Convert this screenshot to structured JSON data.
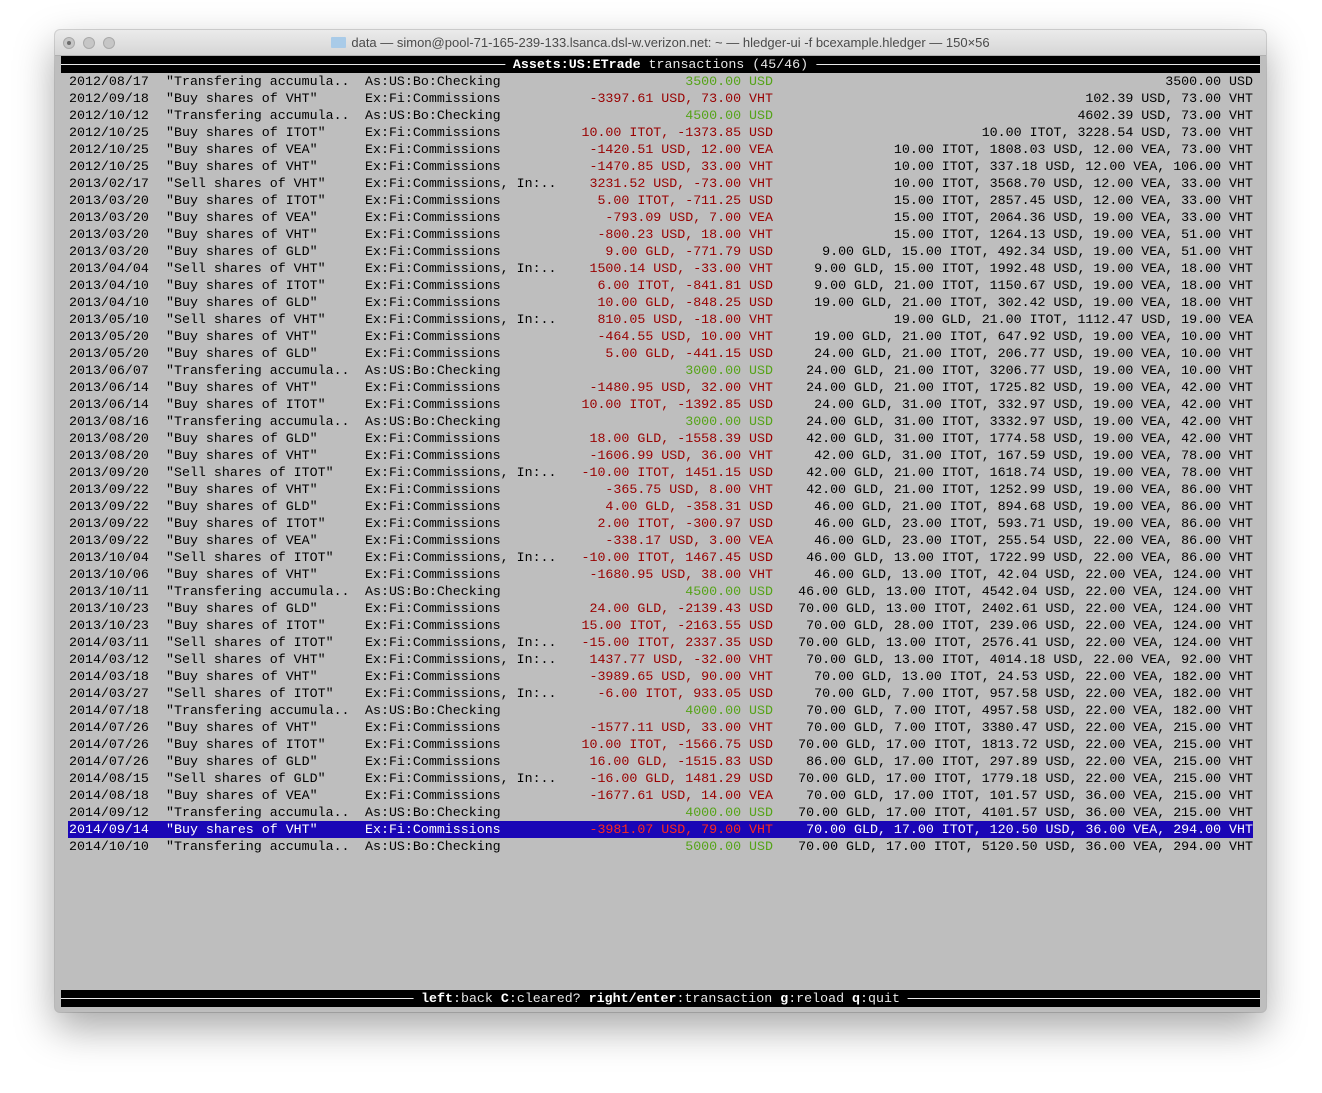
{
  "window": {
    "title": "data — simon@pool-71-165-239-133.lsanca.dsl-w.verizon.net: ~ — hledger-ui -f bcexample.hledger — 150×56"
  },
  "header": {
    "account": "Assets:US:ETrade",
    "suffix": " transactions (45/46)"
  },
  "footer": {
    "keys": [
      {
        "key": "left",
        "action": "back"
      },
      {
        "key": "C",
        "action": "cleared?"
      },
      {
        "key": "right/enter",
        "action": "transaction"
      },
      {
        "key": "g",
        "action": "reload"
      },
      {
        "key": "q",
        "action": "quit"
      }
    ]
  },
  "colors": {
    "background": "#bebebe",
    "increase": "#55a318",
    "decrease": "#980000",
    "selection": "#1a06b6"
  },
  "selected_index": 44,
  "rows": [
    {
      "date": "2012/08/17",
      "desc": "\"Transfering accumula..",
      "acct": "As:US:Bo:Checking",
      "change": "3500.00 USD",
      "pos": true,
      "balance": "3500.00 USD"
    },
    {
      "date": "2012/09/18",
      "desc": "\"Buy shares of VHT\"",
      "acct": "Ex:Fi:Commissions",
      "change": "-3397.61 USD, 73.00 VHT",
      "pos": false,
      "balance": "102.39 USD, 73.00 VHT"
    },
    {
      "date": "2012/10/12",
      "desc": "\"Transfering accumula..",
      "acct": "As:US:Bo:Checking",
      "change": "4500.00 USD",
      "pos": true,
      "balance": "4602.39 USD, 73.00 VHT"
    },
    {
      "date": "2012/10/25",
      "desc": "\"Buy shares of ITOT\"",
      "acct": "Ex:Fi:Commissions",
      "change": "10.00 ITOT, -1373.85 USD",
      "pos": false,
      "balance": "10.00 ITOT, 3228.54 USD, 73.00 VHT"
    },
    {
      "date": "2012/10/25",
      "desc": "\"Buy shares of VEA\"",
      "acct": "Ex:Fi:Commissions",
      "change": "-1420.51 USD, 12.00 VEA",
      "pos": false,
      "balance": "10.00 ITOT, 1808.03 USD, 12.00 VEA, 73.00 VHT"
    },
    {
      "date": "2012/10/25",
      "desc": "\"Buy shares of VHT\"",
      "acct": "Ex:Fi:Commissions",
      "change": "-1470.85 USD, 33.00 VHT",
      "pos": false,
      "balance": "10.00 ITOT, 337.18 USD, 12.00 VEA, 106.00 VHT"
    },
    {
      "date": "2013/02/17",
      "desc": "\"Sell shares of VHT\"",
      "acct": "Ex:Fi:Commissions, In:..",
      "change": "3231.52 USD, -73.00 VHT",
      "pos": false,
      "balance": "10.00 ITOT, 3568.70 USD, 12.00 VEA, 33.00 VHT"
    },
    {
      "date": "2013/03/20",
      "desc": "\"Buy shares of ITOT\"",
      "acct": "Ex:Fi:Commissions",
      "change": "5.00 ITOT, -711.25 USD",
      "pos": false,
      "balance": "15.00 ITOT, 2857.45 USD, 12.00 VEA, 33.00 VHT"
    },
    {
      "date": "2013/03/20",
      "desc": "\"Buy shares of VEA\"",
      "acct": "Ex:Fi:Commissions",
      "change": "-793.09 USD, 7.00 VEA",
      "pos": false,
      "balance": "15.00 ITOT, 2064.36 USD, 19.00 VEA, 33.00 VHT"
    },
    {
      "date": "2013/03/20",
      "desc": "\"Buy shares of VHT\"",
      "acct": "Ex:Fi:Commissions",
      "change": "-800.23 USD, 18.00 VHT",
      "pos": false,
      "balance": "15.00 ITOT, 1264.13 USD, 19.00 VEA, 51.00 VHT"
    },
    {
      "date": "2013/03/20",
      "desc": "\"Buy shares of GLD\"",
      "acct": "Ex:Fi:Commissions",
      "change": "9.00 GLD, -771.79 USD",
      "pos": false,
      "balance": "9.00 GLD, 15.00 ITOT, 492.34 USD, 19.00 VEA, 51.00 VHT"
    },
    {
      "date": "2013/04/04",
      "desc": "\"Sell shares of VHT\"",
      "acct": "Ex:Fi:Commissions, In:..",
      "change": "1500.14 USD, -33.00 VHT",
      "pos": false,
      "balance": "9.00 GLD, 15.00 ITOT, 1992.48 USD, 19.00 VEA, 18.00 VHT"
    },
    {
      "date": "2013/04/10",
      "desc": "\"Buy shares of ITOT\"",
      "acct": "Ex:Fi:Commissions",
      "change": "6.00 ITOT, -841.81 USD",
      "pos": false,
      "balance": "9.00 GLD, 21.00 ITOT, 1150.67 USD, 19.00 VEA, 18.00 VHT"
    },
    {
      "date": "2013/04/10",
      "desc": "\"Buy shares of GLD\"",
      "acct": "Ex:Fi:Commissions",
      "change": "10.00 GLD, -848.25 USD",
      "pos": false,
      "balance": "19.00 GLD, 21.00 ITOT, 302.42 USD, 19.00 VEA, 18.00 VHT"
    },
    {
      "date": "2013/05/10",
      "desc": "\"Sell shares of VHT\"",
      "acct": "Ex:Fi:Commissions, In:..",
      "change": "810.05 USD, -18.00 VHT",
      "pos": false,
      "balance": "19.00 GLD, 21.00 ITOT, 1112.47 USD, 19.00 VEA"
    },
    {
      "date": "2013/05/20",
      "desc": "\"Buy shares of VHT\"",
      "acct": "Ex:Fi:Commissions",
      "change": "-464.55 USD, 10.00 VHT",
      "pos": false,
      "balance": "19.00 GLD, 21.00 ITOT, 647.92 USD, 19.00 VEA, 10.00 VHT"
    },
    {
      "date": "2013/05/20",
      "desc": "\"Buy shares of GLD\"",
      "acct": "Ex:Fi:Commissions",
      "change": "5.00 GLD, -441.15 USD",
      "pos": false,
      "balance": "24.00 GLD, 21.00 ITOT, 206.77 USD, 19.00 VEA, 10.00 VHT"
    },
    {
      "date": "2013/06/07",
      "desc": "\"Transfering accumula..",
      "acct": "As:US:Bo:Checking",
      "change": "3000.00 USD",
      "pos": true,
      "balance": "24.00 GLD, 21.00 ITOT, 3206.77 USD, 19.00 VEA, 10.00 VHT"
    },
    {
      "date": "2013/06/14",
      "desc": "\"Buy shares of VHT\"",
      "acct": "Ex:Fi:Commissions",
      "change": "-1480.95 USD, 32.00 VHT",
      "pos": false,
      "balance": "24.00 GLD, 21.00 ITOT, 1725.82 USD, 19.00 VEA, 42.00 VHT"
    },
    {
      "date": "2013/06/14",
      "desc": "\"Buy shares of ITOT\"",
      "acct": "Ex:Fi:Commissions",
      "change": "10.00 ITOT, -1392.85 USD",
      "pos": false,
      "balance": "24.00 GLD, 31.00 ITOT, 332.97 USD, 19.00 VEA, 42.00 VHT"
    },
    {
      "date": "2013/08/16",
      "desc": "\"Transfering accumula..",
      "acct": "As:US:Bo:Checking",
      "change": "3000.00 USD",
      "pos": true,
      "balance": "24.00 GLD, 31.00 ITOT, 3332.97 USD, 19.00 VEA, 42.00 VHT"
    },
    {
      "date": "2013/08/20",
      "desc": "\"Buy shares of GLD\"",
      "acct": "Ex:Fi:Commissions",
      "change": "18.00 GLD, -1558.39 USD",
      "pos": false,
      "balance": "42.00 GLD, 31.00 ITOT, 1774.58 USD, 19.00 VEA, 42.00 VHT"
    },
    {
      "date": "2013/08/20",
      "desc": "\"Buy shares of VHT\"",
      "acct": "Ex:Fi:Commissions",
      "change": "-1606.99 USD, 36.00 VHT",
      "pos": false,
      "balance": "42.00 GLD, 31.00 ITOT, 167.59 USD, 19.00 VEA, 78.00 VHT"
    },
    {
      "date": "2013/09/20",
      "desc": "\"Sell shares of ITOT\"",
      "acct": "Ex:Fi:Commissions, In:..",
      "change": "-10.00 ITOT, 1451.15 USD",
      "pos": false,
      "balance": "42.00 GLD, 21.00 ITOT, 1618.74 USD, 19.00 VEA, 78.00 VHT"
    },
    {
      "date": "2013/09/22",
      "desc": "\"Buy shares of VHT\"",
      "acct": "Ex:Fi:Commissions",
      "change": "-365.75 USD, 8.00 VHT",
      "pos": false,
      "balance": "42.00 GLD, 21.00 ITOT, 1252.99 USD, 19.00 VEA, 86.00 VHT"
    },
    {
      "date": "2013/09/22",
      "desc": "\"Buy shares of GLD\"",
      "acct": "Ex:Fi:Commissions",
      "change": "4.00 GLD, -358.31 USD",
      "pos": false,
      "balance": "46.00 GLD, 21.00 ITOT, 894.68 USD, 19.00 VEA, 86.00 VHT"
    },
    {
      "date": "2013/09/22",
      "desc": "\"Buy shares of ITOT\"",
      "acct": "Ex:Fi:Commissions",
      "change": "2.00 ITOT, -300.97 USD",
      "pos": false,
      "balance": "46.00 GLD, 23.00 ITOT, 593.71 USD, 19.00 VEA, 86.00 VHT"
    },
    {
      "date": "2013/09/22",
      "desc": "\"Buy shares of VEA\"",
      "acct": "Ex:Fi:Commissions",
      "change": "-338.17 USD, 3.00 VEA",
      "pos": false,
      "balance": "46.00 GLD, 23.00 ITOT, 255.54 USD, 22.00 VEA, 86.00 VHT"
    },
    {
      "date": "2013/10/04",
      "desc": "\"Sell shares of ITOT\"",
      "acct": "Ex:Fi:Commissions, In:..",
      "change": "-10.00 ITOT, 1467.45 USD",
      "pos": false,
      "balance": "46.00 GLD, 13.00 ITOT, 1722.99 USD, 22.00 VEA, 86.00 VHT"
    },
    {
      "date": "2013/10/06",
      "desc": "\"Buy shares of VHT\"",
      "acct": "Ex:Fi:Commissions",
      "change": "-1680.95 USD, 38.00 VHT",
      "pos": false,
      "balance": "46.00 GLD, 13.00 ITOT, 42.04 USD, 22.00 VEA, 124.00 VHT"
    },
    {
      "date": "2013/10/11",
      "desc": "\"Transfering accumula..",
      "acct": "As:US:Bo:Checking",
      "change": "4500.00 USD",
      "pos": true,
      "balance": "46.00 GLD, 13.00 ITOT, 4542.04 USD, 22.00 VEA, 124.00 VHT"
    },
    {
      "date": "2013/10/23",
      "desc": "\"Buy shares of GLD\"",
      "acct": "Ex:Fi:Commissions",
      "change": "24.00 GLD, -2139.43 USD",
      "pos": false,
      "balance": "70.00 GLD, 13.00 ITOT, 2402.61 USD, 22.00 VEA, 124.00 VHT"
    },
    {
      "date": "2013/10/23",
      "desc": "\"Buy shares of ITOT\"",
      "acct": "Ex:Fi:Commissions",
      "change": "15.00 ITOT, -2163.55 USD",
      "pos": false,
      "balance": "70.00 GLD, 28.00 ITOT, 239.06 USD, 22.00 VEA, 124.00 VHT"
    },
    {
      "date": "2014/03/11",
      "desc": "\"Sell shares of ITOT\"",
      "acct": "Ex:Fi:Commissions, In:..",
      "change": "-15.00 ITOT, 2337.35 USD",
      "pos": false,
      "balance": "70.00 GLD, 13.00 ITOT, 2576.41 USD, 22.00 VEA, 124.00 VHT"
    },
    {
      "date": "2014/03/12",
      "desc": "\"Sell shares of VHT\"",
      "acct": "Ex:Fi:Commissions, In:..",
      "change": "1437.77 USD, -32.00 VHT",
      "pos": false,
      "balance": "70.00 GLD, 13.00 ITOT, 4014.18 USD, 22.00 VEA, 92.00 VHT"
    },
    {
      "date": "2014/03/18",
      "desc": "\"Buy shares of VHT\"",
      "acct": "Ex:Fi:Commissions",
      "change": "-3989.65 USD, 90.00 VHT",
      "pos": false,
      "balance": "70.00 GLD, 13.00 ITOT, 24.53 USD, 22.00 VEA, 182.00 VHT"
    },
    {
      "date": "2014/03/27",
      "desc": "\"Sell shares of ITOT\"",
      "acct": "Ex:Fi:Commissions, In:..",
      "change": "-6.00 ITOT, 933.05 USD",
      "pos": false,
      "balance": "70.00 GLD, 7.00 ITOT, 957.58 USD, 22.00 VEA, 182.00 VHT"
    },
    {
      "date": "2014/07/18",
      "desc": "\"Transfering accumula..",
      "acct": "As:US:Bo:Checking",
      "change": "4000.00 USD",
      "pos": true,
      "balance": "70.00 GLD, 7.00 ITOT, 4957.58 USD, 22.00 VEA, 182.00 VHT"
    },
    {
      "date": "2014/07/26",
      "desc": "\"Buy shares of VHT\"",
      "acct": "Ex:Fi:Commissions",
      "change": "-1577.11 USD, 33.00 VHT",
      "pos": false,
      "balance": "70.00 GLD, 7.00 ITOT, 3380.47 USD, 22.00 VEA, 215.00 VHT"
    },
    {
      "date": "2014/07/26",
      "desc": "\"Buy shares of ITOT\"",
      "acct": "Ex:Fi:Commissions",
      "change": "10.00 ITOT, -1566.75 USD",
      "pos": false,
      "balance": "70.00 GLD, 17.00 ITOT, 1813.72 USD, 22.00 VEA, 215.00 VHT"
    },
    {
      "date": "2014/07/26",
      "desc": "\"Buy shares of GLD\"",
      "acct": "Ex:Fi:Commissions",
      "change": "16.00 GLD, -1515.83 USD",
      "pos": false,
      "balance": "86.00 GLD, 17.00 ITOT, 297.89 USD, 22.00 VEA, 215.00 VHT"
    },
    {
      "date": "2014/08/15",
      "desc": "\"Sell shares of GLD\"",
      "acct": "Ex:Fi:Commissions, In:..",
      "change": "-16.00 GLD, 1481.29 USD",
      "pos": false,
      "balance": "70.00 GLD, 17.00 ITOT, 1779.18 USD, 22.00 VEA, 215.00 VHT"
    },
    {
      "date": "2014/08/18",
      "desc": "\"Buy shares of VEA\"",
      "acct": "Ex:Fi:Commissions",
      "change": "-1677.61 USD, 14.00 VEA",
      "pos": false,
      "balance": "70.00 GLD, 17.00 ITOT, 101.57 USD, 36.00 VEA, 215.00 VHT"
    },
    {
      "date": "2014/09/12",
      "desc": "\"Transfering accumula..",
      "acct": "As:US:Bo:Checking",
      "change": "4000.00 USD",
      "pos": true,
      "balance": "70.00 GLD, 17.00 ITOT, 4101.57 USD, 36.00 VEA, 215.00 VHT"
    },
    {
      "date": "2014/09/14",
      "desc": "\"Buy shares of VHT\"",
      "acct": "Ex:Fi:Commissions",
      "change": "-3981.07 USD, 79.00 VHT",
      "pos": false,
      "balance": "70.00 GLD, 17.00 ITOT, 120.50 USD, 36.00 VEA, 294.00 VHT"
    },
    {
      "date": "2014/10/10",
      "desc": "\"Transfering accumula..",
      "acct": "As:US:Bo:Checking",
      "change": "5000.00 USD",
      "pos": true,
      "balance": "70.00 GLD, 17.00 ITOT, 5120.50 USD, 36.00 VEA, 294.00 VHT"
    }
  ]
}
